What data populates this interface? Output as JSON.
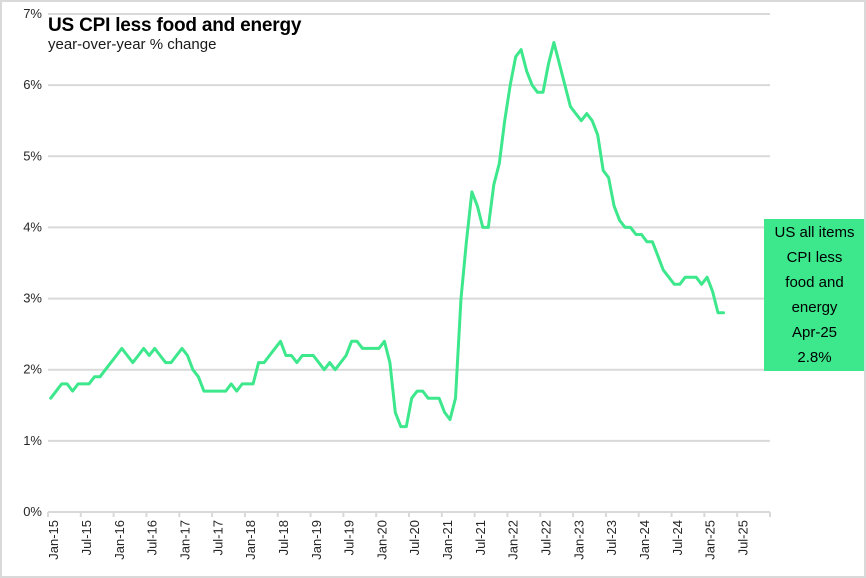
{
  "page": {
    "background": "#ffffff",
    "border_color": "#d9d9d9"
  },
  "chart_data": {
    "type": "line",
    "title": "US CPI less food and energy",
    "subtitle": "year-over-year % change",
    "xlabel": "",
    "ylabel": "",
    "ylim": [
      0,
      7
    ],
    "grid": "horizontal",
    "legend_position": "none",
    "gridline_color": "#d9d9d9",
    "axis_text_color": "#262626",
    "x_start": "Jan-15",
    "x_end": "Apr-25",
    "x_tick_labels": [
      "Jan-15",
      "Jul-15",
      "Jan-16",
      "Jul-16",
      "Jan-17",
      "Jul-17",
      "Jan-18",
      "Jul-18",
      "Jan-19",
      "Jul-19",
      "Jan-20",
      "Jul-20",
      "Jan-21",
      "Jul-21",
      "Jan-22",
      "Jul-22",
      "Jan-23",
      "Jul-23",
      "Jan-24",
      "Jul-24",
      "Jan-25",
      "Jul-25"
    ],
    "y_tick_labels": [
      "0%",
      "1%",
      "2%",
      "3%",
      "4%",
      "5%",
      "6%",
      "7%"
    ],
    "series": [
      {
        "name": "US all items CPI less food and energy",
        "color": "#3de78c",
        "start_month": "Jan-15",
        "values": [
          1.6,
          1.7,
          1.8,
          1.8,
          1.7,
          1.8,
          1.8,
          1.8,
          1.9,
          1.9,
          2.0,
          2.1,
          2.2,
          2.3,
          2.2,
          2.1,
          2.2,
          2.3,
          2.2,
          2.3,
          2.2,
          2.1,
          2.1,
          2.2,
          2.3,
          2.2,
          2.0,
          1.9,
          1.7,
          1.7,
          1.7,
          1.7,
          1.7,
          1.8,
          1.7,
          1.8,
          1.8,
          1.8,
          2.1,
          2.1,
          2.2,
          2.3,
          2.4,
          2.2,
          2.2,
          2.1,
          2.2,
          2.2,
          2.2,
          2.1,
          2.0,
          2.1,
          2.0,
          2.1,
          2.2,
          2.4,
          2.4,
          2.3,
          2.3,
          2.3,
          2.3,
          2.4,
          2.1,
          1.4,
          1.2,
          1.2,
          1.6,
          1.7,
          1.7,
          1.6,
          1.6,
          1.6,
          1.4,
          1.3,
          1.6,
          3.0,
          3.8,
          4.5,
          4.3,
          4.0,
          4.0,
          4.6,
          4.9,
          5.5,
          6.0,
          6.4,
          6.5,
          6.2,
          6.0,
          5.9,
          5.9,
          6.3,
          6.6,
          6.3,
          6.0,
          5.7,
          5.6,
          5.5,
          5.6,
          5.5,
          5.3,
          4.8,
          4.7,
          4.3,
          4.1,
          4.0,
          4.0,
          3.9,
          3.9,
          3.8,
          3.8,
          3.6,
          3.4,
          3.3,
          3.2,
          3.2,
          3.3,
          3.3,
          3.3,
          3.2,
          3.3,
          3.1,
          2.8,
          2.8
        ]
      }
    ],
    "annotation": {
      "lines": [
        "US all items",
        "CPI less",
        "food and",
        "energy",
        "Apr-25",
        "2.8%"
      ],
      "latest_period": "Apr-25",
      "latest_value_pct": "2.8%",
      "box_color": "#3de78c",
      "text_color": "#000000"
    }
  }
}
